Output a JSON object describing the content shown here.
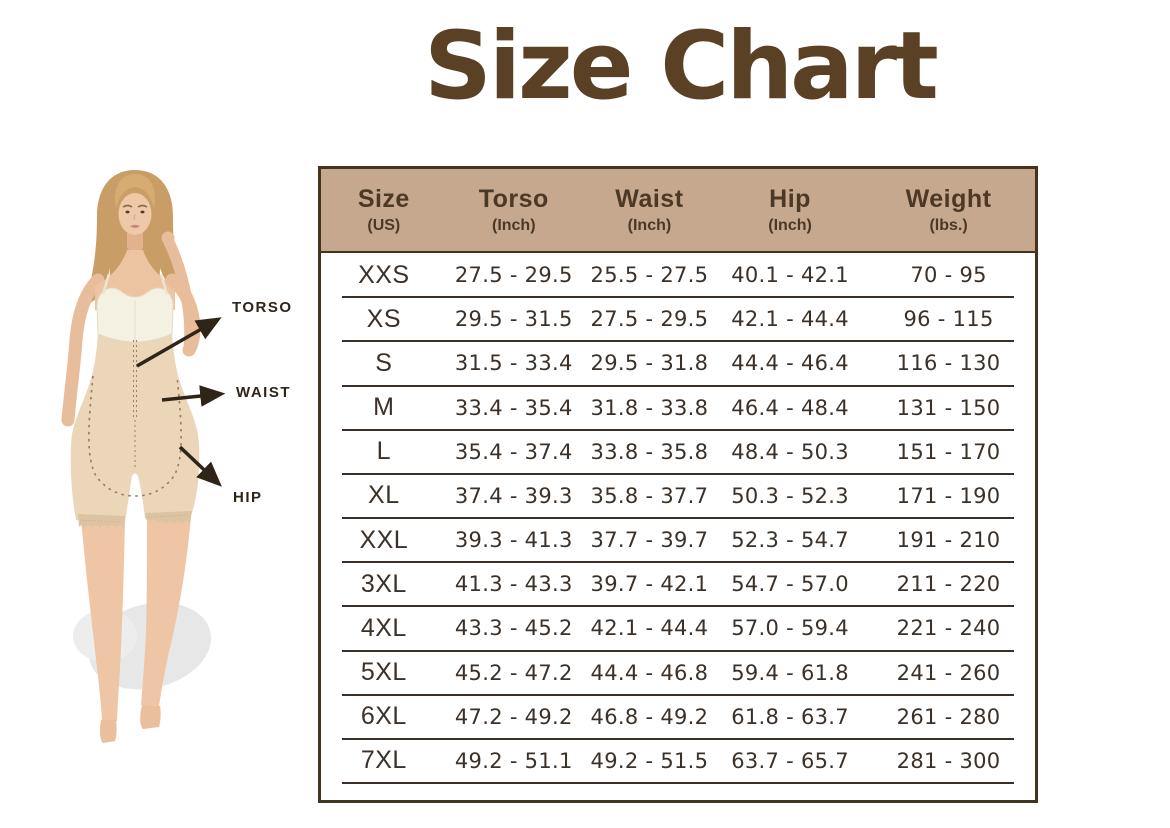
{
  "title": "Size Chart",
  "figure": {
    "annotations": [
      {
        "label": "TORSO"
      },
      {
        "label": "WAIST"
      },
      {
        "label": "HIP"
      }
    ]
  },
  "colors": {
    "title": "#5a4126",
    "table_border": "#43331f",
    "header_bg": "#c6a88e",
    "header_text": "#4b3826",
    "row_text": "#3b3128",
    "separator": "#3a3027",
    "annotation": "#2f2418",
    "background": "#ffffff"
  },
  "chart_data": {
    "type": "table",
    "title": "Size Chart",
    "columns": [
      {
        "label": "Size",
        "sublabel": "(US)"
      },
      {
        "label": "Torso",
        "sublabel": "(Inch)"
      },
      {
        "label": "Waist",
        "sublabel": "(Inch)"
      },
      {
        "label": "Hip",
        "sublabel": "(Inch)"
      },
      {
        "label": "Weight",
        "sublabel": "(lbs.)"
      }
    ],
    "rows": [
      [
        "XXS",
        "27.5 - 29.5",
        "25.5 - 27.5",
        "40.1 - 42.1",
        "70 - 95"
      ],
      [
        "XS",
        "29.5 - 31.5",
        "27.5 - 29.5",
        "42.1 - 44.4",
        "96 - 115"
      ],
      [
        "S",
        "31.5 - 33.4",
        "29.5 - 31.8",
        "44.4 - 46.4",
        "116 - 130"
      ],
      [
        "M",
        "33.4 - 35.4",
        "31.8 - 33.8",
        "46.4 - 48.4",
        "131 - 150"
      ],
      [
        "L",
        "35.4 - 37.4",
        "33.8 - 35.8",
        "48.4 - 50.3",
        "151 - 170"
      ],
      [
        "XL",
        "37.4 - 39.3",
        "35.8 - 37.7",
        "50.3 - 52.3",
        "171 - 190"
      ],
      [
        "XXL",
        "39.3 - 41.3",
        "37.7 - 39.7",
        "52.3 - 54.7",
        "191 - 210"
      ],
      [
        "3XL",
        "41.3 - 43.3",
        "39.7 - 42.1",
        "54.7 - 57.0",
        "211 - 220"
      ],
      [
        "4XL",
        "43.3 - 45.2",
        "42.1 - 44.4",
        "57.0 - 59.4",
        "221 - 240"
      ],
      [
        "5XL",
        "45.2 - 47.2",
        "44.4 - 46.8",
        "59.4 - 61.8",
        "241 - 260"
      ],
      [
        "6XL",
        "47.2 - 49.2",
        "46.8 - 49.2",
        "61.8 - 63.7",
        "261 - 280"
      ],
      [
        "7XL",
        "49.2 - 51.1",
        "49.2 - 51.5",
        "63.7 - 65.7",
        "281 - 300"
      ]
    ]
  }
}
